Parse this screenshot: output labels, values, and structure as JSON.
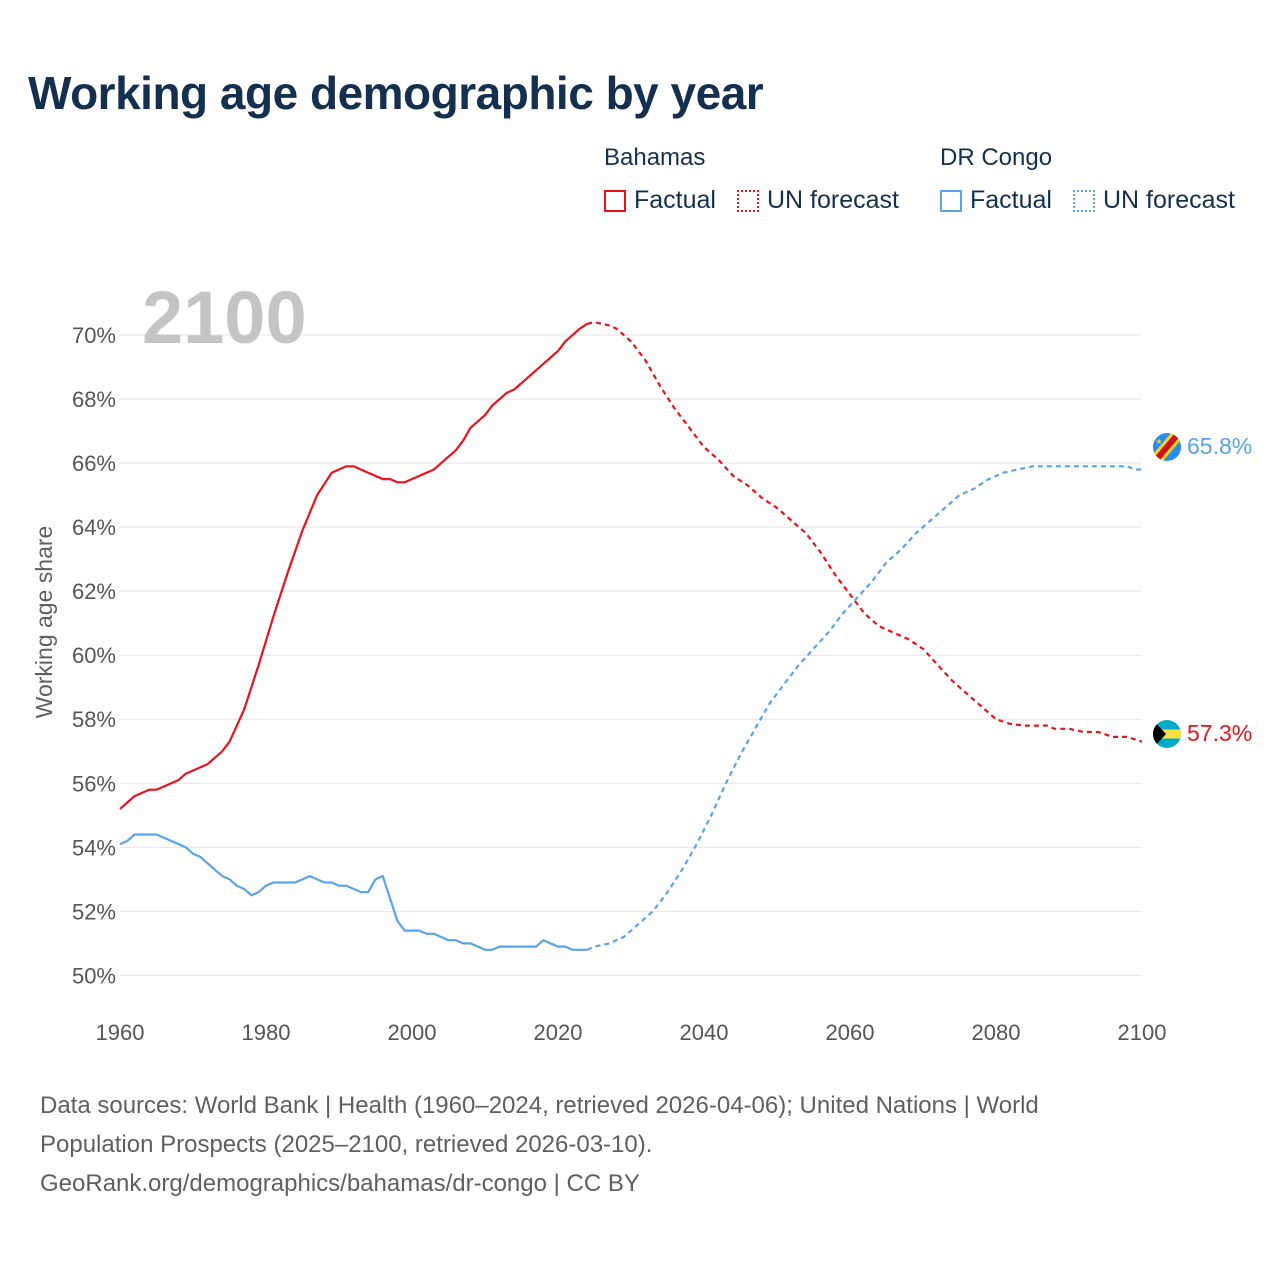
{
  "colors": {
    "bahamas": "#e8141a",
    "drcongo": "#5aa3e6",
    "title": "#15304f",
    "grid": "#e4e4e4",
    "tick": "#555555"
  },
  "legend": {
    "groups": [
      {
        "name": "Bahamas",
        "factual": "Factual",
        "forecast": "UN forecast"
      },
      {
        "name": "DR Congo",
        "factual": "Factual",
        "forecast": "UN forecast"
      }
    ]
  },
  "footer": {
    "line1": "Data sources: World Bank | Health (1960–2024, retrieved 2026-04-06); United Nations | World",
    "line2": "Population Prospects (2025–2100, retrieved 2026-03-10).",
    "line3": "GeoRank.org/demographics/bahamas/dr-congo | CC BY"
  },
  "chart_data": {
    "type": "line",
    "title": "Working age demographic by year",
    "year_label": "2100",
    "ylabel": "Working age share",
    "xlabel": "",
    "xlim": [
      1960,
      2100
    ],
    "ylim": [
      49.2,
      71.5
    ],
    "xticks": [
      1960,
      1980,
      2000,
      2020,
      2040,
      2060,
      2080,
      2100
    ],
    "yticks": [
      50,
      52,
      54,
      56,
      58,
      60,
      62,
      64,
      66,
      68,
      70
    ],
    "factual_until": 2024,
    "series": [
      {
        "name": "Bahamas",
        "color": "#e8141a",
        "end_label": "57.3%",
        "points": [
          [
            1960,
            55.2
          ],
          [
            1962,
            55.6
          ],
          [
            1964,
            55.8
          ],
          [
            1965,
            55.8
          ],
          [
            1968,
            56.1
          ],
          [
            1969,
            56.3
          ],
          [
            1972,
            56.6
          ],
          [
            1974,
            57.0
          ],
          [
            1975,
            57.3
          ],
          [
            1977,
            58.3
          ],
          [
            1979,
            59.7
          ],
          [
            1981,
            61.2
          ],
          [
            1983,
            62.6
          ],
          [
            1985,
            63.9
          ],
          [
            1987,
            65.0
          ],
          [
            1989,
            65.7
          ],
          [
            1991,
            65.9
          ],
          [
            1992,
            65.9
          ],
          [
            1994,
            65.7
          ],
          [
            1996,
            65.5
          ],
          [
            1997,
            65.5
          ],
          [
            1998,
            65.4
          ],
          [
            1999,
            65.4
          ],
          [
            2001,
            65.6
          ],
          [
            2003,
            65.8
          ],
          [
            2004,
            66.0
          ],
          [
            2006,
            66.4
          ],
          [
            2007,
            66.7
          ],
          [
            2008,
            67.1
          ],
          [
            2010,
            67.5
          ],
          [
            2011,
            67.8
          ],
          [
            2013,
            68.2
          ],
          [
            2014,
            68.3
          ],
          [
            2016,
            68.7
          ],
          [
            2018,
            69.1
          ],
          [
            2020,
            69.5
          ],
          [
            2021,
            69.8
          ],
          [
            2023,
            70.2
          ],
          [
            2024,
            70.35
          ],
          [
            2025,
            70.4
          ],
          [
            2027,
            70.3
          ],
          [
            2028,
            70.2
          ],
          [
            2030,
            69.8
          ],
          [
            2032,
            69.2
          ],
          [
            2034,
            68.4
          ],
          [
            2036,
            67.7
          ],
          [
            2038,
            67.1
          ],
          [
            2040,
            66.5
          ],
          [
            2042,
            66.1
          ],
          [
            2044,
            65.6
          ],
          [
            2046,
            65.3
          ],
          [
            2048,
            64.9
          ],
          [
            2050,
            64.6
          ],
          [
            2052,
            64.2
          ],
          [
            2054,
            63.8
          ],
          [
            2056,
            63.2
          ],
          [
            2058,
            62.5
          ],
          [
            2060,
            61.9
          ],
          [
            2062,
            61.3
          ],
          [
            2064,
            60.9
          ],
          [
            2066,
            60.7
          ],
          [
            2068,
            60.5
          ],
          [
            2070,
            60.2
          ],
          [
            2072,
            59.7
          ],
          [
            2074,
            59.2
          ],
          [
            2076,
            58.8
          ],
          [
            2078,
            58.4
          ],
          [
            2080,
            58.0
          ],
          [
            2082,
            57.85
          ],
          [
            2084,
            57.8
          ],
          [
            2087,
            57.8
          ],
          [
            2088,
            57.7
          ],
          [
            2090,
            57.7
          ],
          [
            2092,
            57.6
          ],
          [
            2094,
            57.6
          ],
          [
            2096,
            57.45
          ],
          [
            2098,
            57.45
          ],
          [
            2100,
            57.3
          ]
        ]
      },
      {
        "name": "DR Congo",
        "color": "#5aa3e6",
        "end_label": "65.8%",
        "points": [
          [
            1960,
            54.1
          ],
          [
            1961,
            54.2
          ],
          [
            1962,
            54.4
          ],
          [
            1965,
            54.4
          ],
          [
            1967,
            54.2
          ],
          [
            1969,
            54.0
          ],
          [
            1970,
            53.8
          ],
          [
            1971,
            53.7
          ],
          [
            1974,
            53.1
          ],
          [
            1975,
            53.0
          ],
          [
            1976,
            52.8
          ],
          [
            1977,
            52.7
          ],
          [
            1978,
            52.5
          ],
          [
            1979,
            52.6
          ],
          [
            1980,
            52.8
          ],
          [
            1981,
            52.9
          ],
          [
            1984,
            52.9
          ],
          [
            1986,
            53.1
          ],
          [
            1988,
            52.9
          ],
          [
            1989,
            52.9
          ],
          [
            1990,
            52.8
          ],
          [
            1991,
            52.8
          ],
          [
            1993,
            52.6
          ],
          [
            1994,
            52.6
          ],
          [
            1995,
            53.0
          ],
          [
            1996,
            53.1
          ],
          [
            1998,
            51.7
          ],
          [
            1999,
            51.4
          ],
          [
            2001,
            51.4
          ],
          [
            2002,
            51.3
          ],
          [
            2003,
            51.3
          ],
          [
            2005,
            51.1
          ],
          [
            2006,
            51.1
          ],
          [
            2007,
            51.0
          ],
          [
            2008,
            51.0
          ],
          [
            2010,
            50.8
          ],
          [
            2011,
            50.8
          ],
          [
            2012,
            50.9
          ],
          [
            2017,
            50.9
          ],
          [
            2018,
            51.1
          ],
          [
            2020,
            50.9
          ],
          [
            2021,
            50.9
          ],
          [
            2022,
            50.8
          ],
          [
            2024,
            50.8
          ],
          [
            2025,
            50.9
          ],
          [
            2027,
            51.0
          ],
          [
            2029,
            51.2
          ],
          [
            2031,
            51.6
          ],
          [
            2033,
            52.0
          ],
          [
            2035,
            52.6
          ],
          [
            2037,
            53.3
          ],
          [
            2039,
            54.1
          ],
          [
            2041,
            55.0
          ],
          [
            2043,
            56.0
          ],
          [
            2045,
            56.9
          ],
          [
            2047,
            57.7
          ],
          [
            2049,
            58.5
          ],
          [
            2051,
            59.1
          ],
          [
            2053,
            59.7
          ],
          [
            2055,
            60.2
          ],
          [
            2057,
            60.7
          ],
          [
            2059,
            61.3
          ],
          [
            2061,
            61.8
          ],
          [
            2063,
            62.3
          ],
          [
            2065,
            62.9
          ],
          [
            2067,
            63.3
          ],
          [
            2069,
            63.8
          ],
          [
            2071,
            64.2
          ],
          [
            2073,
            64.6
          ],
          [
            2075,
            65.0
          ],
          [
            2077,
            65.2
          ],
          [
            2079,
            65.5
          ],
          [
            2081,
            65.7
          ],
          [
            2083,
            65.8
          ],
          [
            2085,
            65.9
          ],
          [
            2087,
            65.9
          ],
          [
            2098,
            65.9
          ],
          [
            2099,
            65.8
          ],
          [
            2100,
            65.8
          ]
        ]
      }
    ]
  }
}
